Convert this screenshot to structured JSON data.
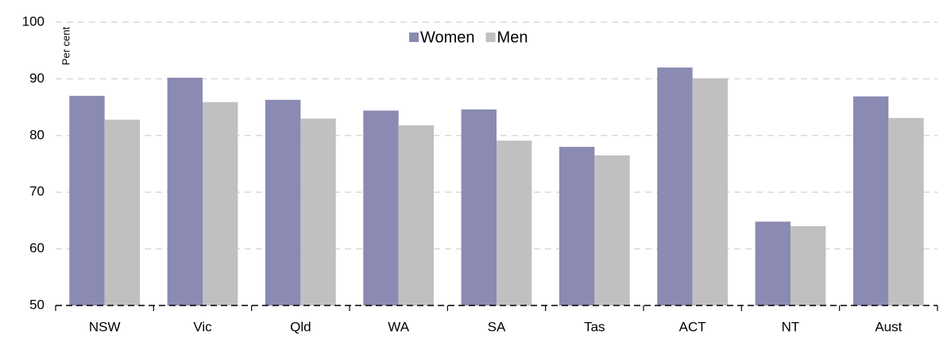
{
  "chart_data": {
    "type": "bar",
    "y_label": "Per cent",
    "categories": [
      "NSW",
      "Vic",
      "Qld",
      "WA",
      "SA",
      "Tas",
      "ACT",
      "NT",
      "Aust"
    ],
    "series": [
      {
        "name": "Women",
        "color": "#8a8ab2",
        "values": [
          87.0,
          90.2,
          86.3,
          84.4,
          84.6,
          78.0,
          92.0,
          64.8,
          86.9
        ]
      },
      {
        "name": "Men",
        "color": "#c0c0c0",
        "values": [
          82.8,
          85.9,
          83.0,
          81.8,
          79.1,
          76.5,
          90.1,
          64.0,
          83.1
        ]
      }
    ],
    "ylim": [
      50,
      100
    ],
    "yticks": [
      50,
      60,
      70,
      80,
      90,
      100
    ],
    "grid": true,
    "legend": "top"
  }
}
